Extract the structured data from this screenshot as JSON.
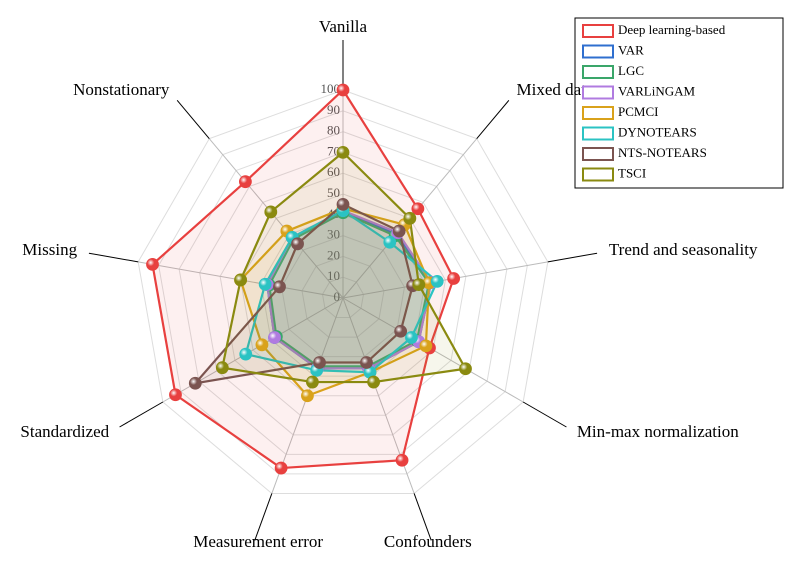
{
  "chart_data": {
    "type": "radar",
    "categories": [
      "Vanilla",
      "Mixed data",
      "Trend and seasonality",
      "Min-max normalization",
      "Confounders",
      "Measurement error",
      "Standardized",
      "Missing",
      "Nonstationary"
    ],
    "rlim": [
      0,
      100
    ],
    "rticks": [
      0,
      10,
      20,
      30,
      40,
      50,
      60,
      70,
      80,
      90,
      100
    ],
    "grid": true,
    "legend": "upper right",
    "series": [
      {
        "name": "Deep learning-based",
        "color": "#e8403f",
        "values": [
          100,
          56,
          54,
          48,
          83,
          87,
          93,
          93,
          73
        ]
      },
      {
        "name": "VAR",
        "color": "#2f6fcf",
        "values": [
          42,
          40,
          43,
          42,
          36,
          36,
          38,
          37,
          38
        ]
      },
      {
        "name": "LGC",
        "color": "#3aa66a",
        "values": [
          41,
          39,
          42,
          41,
          35,
          35,
          37,
          36,
          37
        ]
      },
      {
        "name": "VARLiNGAM",
        "color": "#b07be0",
        "values": [
          42,
          41,
          43,
          42,
          36,
          36,
          38,
          37,
          38
        ]
      },
      {
        "name": "PCMCI",
        "color": "#d9a21b",
        "values": [
          43,
          46,
          42,
          46,
          38,
          50,
          45,
          50,
          42
        ]
      },
      {
        "name": "DYNOTEARS",
        "color": "#2bc3c3",
        "values": [
          42,
          35,
          46,
          38,
          38,
          37,
          54,
          38,
          38
        ]
      },
      {
        "name": "NTS-NOTEARS",
        "color": "#7b5450",
        "values": [
          45,
          42,
          34,
          32,
          33,
          33,
          82,
          31,
          34
        ]
      },
      {
        "name": "TSCI",
        "color": "#8a8a10",
        "values": [
          70,
          50,
          37,
          68,
          43,
          43,
          67,
          50,
          54
        ]
      }
    ]
  }
}
